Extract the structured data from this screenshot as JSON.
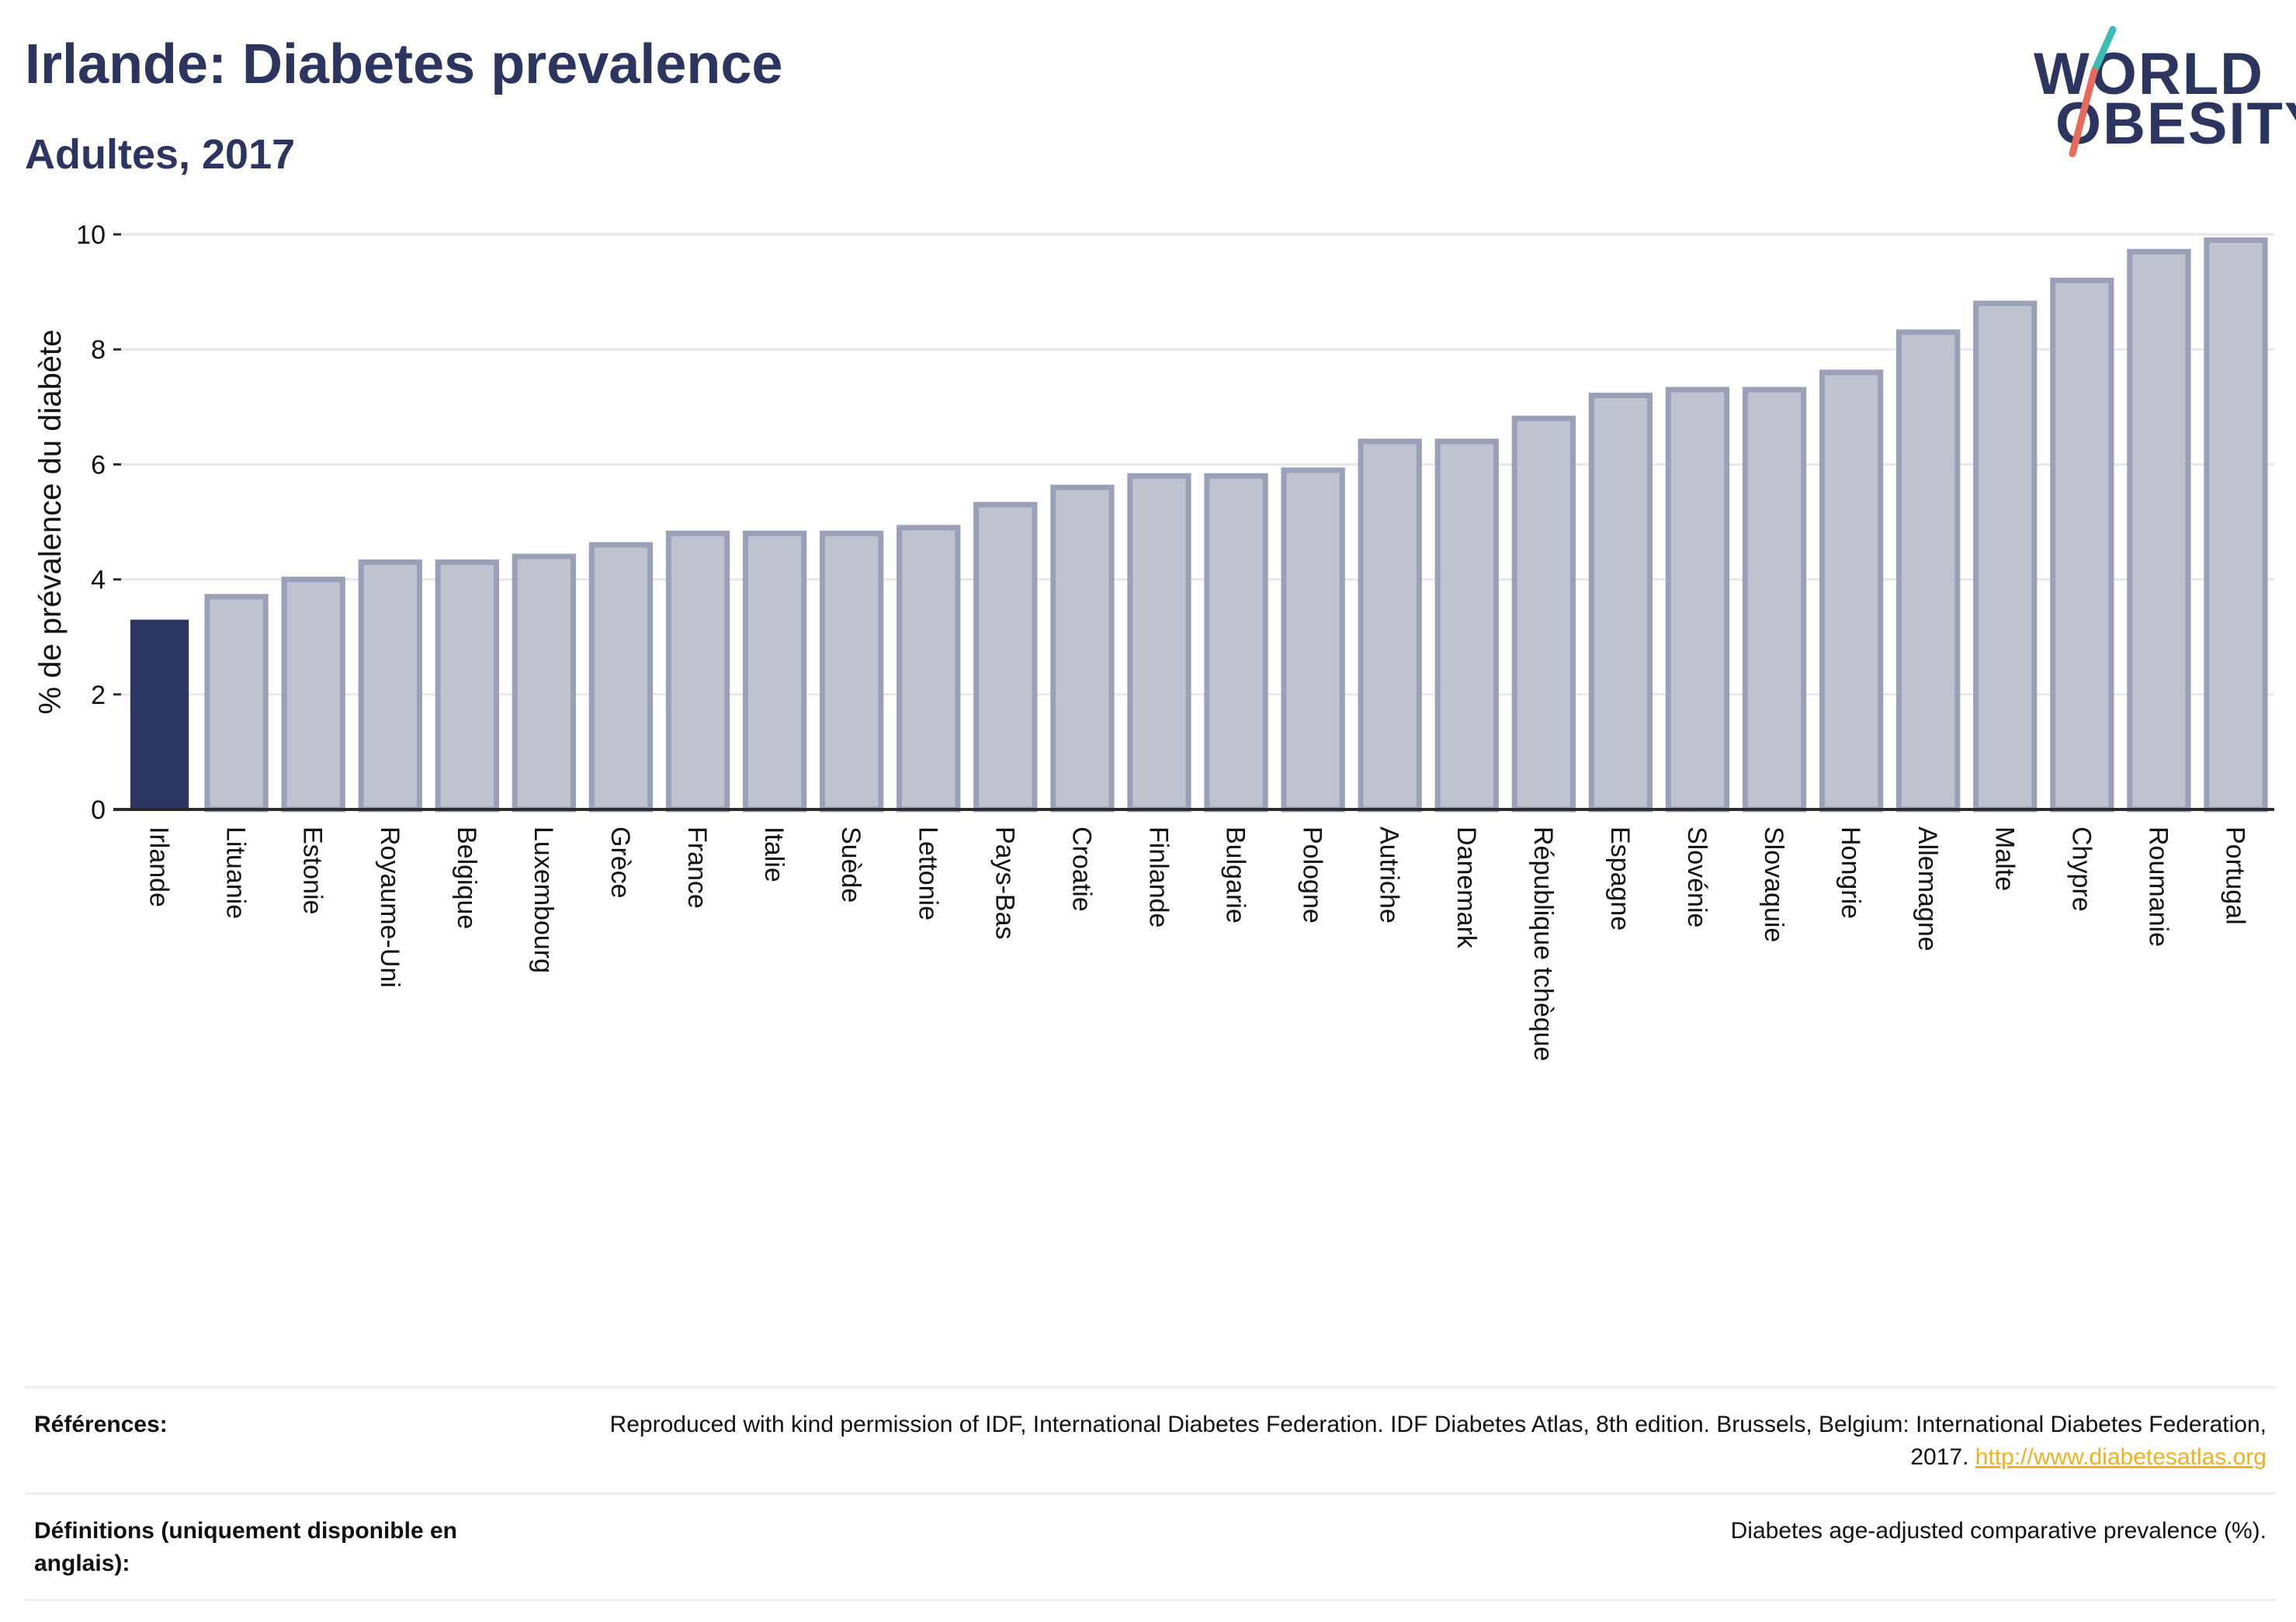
{
  "header": {
    "title": "Irlande: Diabetes prevalence",
    "subtitle": "Adultes, 2017"
  },
  "logo": {
    "line1": "WORLD",
    "line2": "OBESITY",
    "colors": {
      "text": "#2b3560",
      "slash_top": "#3bbdb5",
      "slash_bottom": "#e86a5a"
    }
  },
  "colors": {
    "highlight_bar": "#2b3560",
    "other_bar_fill": "#bfc3d0",
    "other_bar_stroke": "#9aa0b8",
    "grid": "#e6e8ef",
    "axis": "#2b2b2b",
    "text": "#2b3560"
  },
  "chart_data": {
    "type": "bar",
    "title": "",
    "xlabel": "",
    "ylabel": "% de prévalence du diabète",
    "ylim": [
      0,
      10
    ],
    "yticks": [
      0,
      2,
      4,
      6,
      8,
      10
    ],
    "grid": true,
    "legend": "none",
    "highlight": "Irlande",
    "categories": [
      "Irlande",
      "Lituanie",
      "Estonie",
      "Royaume-Uni",
      "Belgique",
      "Luxembourg",
      "Grèce",
      "France",
      "Italie",
      "Suède",
      "Lettonie",
      "Pays-Bas",
      "Croatie",
      "Finlande",
      "Bulgarie",
      "Pologne",
      "Autriche",
      "Danemark",
      "République tchèque",
      "Espagne",
      "Slovénie",
      "Slovaquie",
      "Hongrie",
      "Allemagne",
      "Malte",
      "Chypre",
      "Roumanie",
      "Portugal"
    ],
    "values": [
      3.3,
      3.7,
      4.0,
      4.3,
      4.3,
      4.4,
      4.6,
      4.8,
      4.8,
      4.8,
      4.9,
      5.3,
      5.6,
      5.8,
      5.8,
      5.9,
      6.4,
      6.4,
      6.8,
      7.2,
      7.3,
      7.3,
      7.6,
      8.3,
      8.8,
      9.2,
      9.7,
      9.9
    ]
  },
  "footer": {
    "references_label": "Références:",
    "references_text": "Reproduced with kind permission of IDF, International Diabetes Federation. IDF Diabetes Atlas, 8th edition. Brussels, Belgium: International Diabetes Federation, 2017.",
    "references_link": "http://www.diabetesatlas.org",
    "definitions_label": "Définitions (uniquement disponible en anglais):",
    "definitions_text": "Diabetes age-adjusted comparative prevalence (%)."
  }
}
